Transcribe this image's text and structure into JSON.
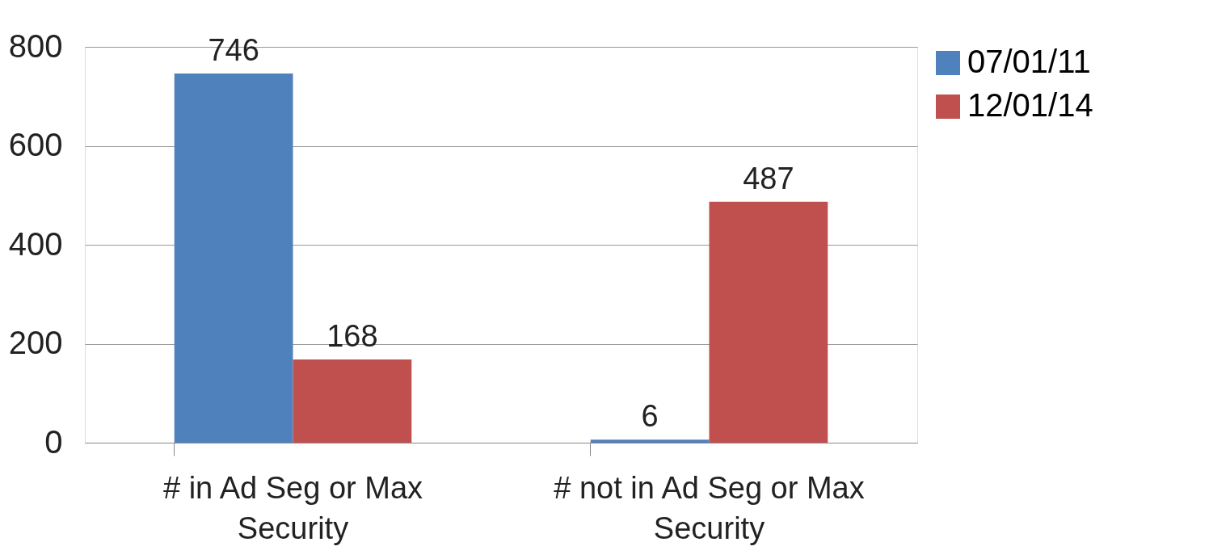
{
  "chart_data": {
    "type": "bar",
    "categories": [
      "# in Ad Seg or Max Security",
      "# not in Ad Seg or Max Security"
    ],
    "series": [
      {
        "name": "07/01/11",
        "color": "#4f81bd",
        "values": [
          746,
          6
        ]
      },
      {
        "name": "12/01/14",
        "color": "#c0504d",
        "values": [
          168,
          487
        ]
      }
    ],
    "ylim": [
      0,
      800
    ],
    "yticks": [
      0,
      200,
      400,
      600,
      800
    ],
    "grid": "y",
    "legend": "right",
    "data_labels": true
  }
}
